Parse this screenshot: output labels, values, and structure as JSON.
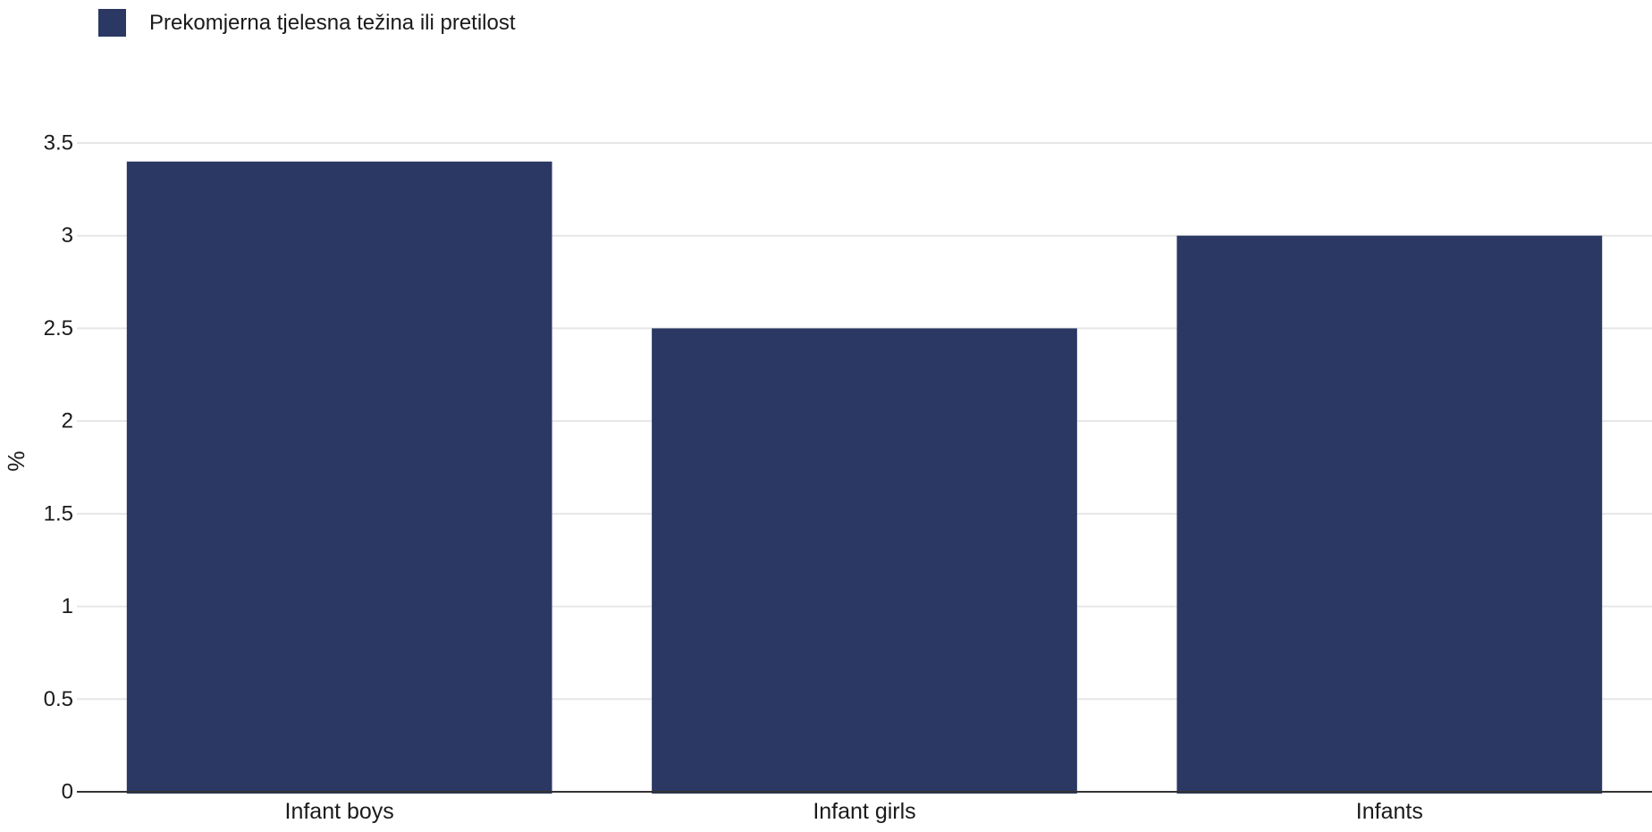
{
  "legend": {
    "label": "Prekomjerna tjelesna težina ili pretilost"
  },
  "colors": {
    "bar": "#2b3864",
    "grid": "#e6e6e6",
    "axis": "#333333"
  },
  "chart_data": {
    "type": "bar",
    "categories": [
      "Infant boys",
      "Infant girls",
      "Infants"
    ],
    "series": [
      {
        "name": "Prekomjerna tjelesna težina ili pretilost",
        "values": [
          3.4,
          2.5,
          3.0
        ]
      }
    ],
    "ylabel": "%",
    "ylim": [
      0,
      3.5
    ],
    "yticks": [
      0,
      0.5,
      1,
      1.5,
      2,
      2.5,
      3,
      3.5
    ],
    "ytick_labels": [
      "0",
      "0.5",
      "1",
      "1.5",
      "2",
      "2.5",
      "3",
      "3.5"
    ],
    "grid": true,
    "legend_position": "top-left"
  }
}
